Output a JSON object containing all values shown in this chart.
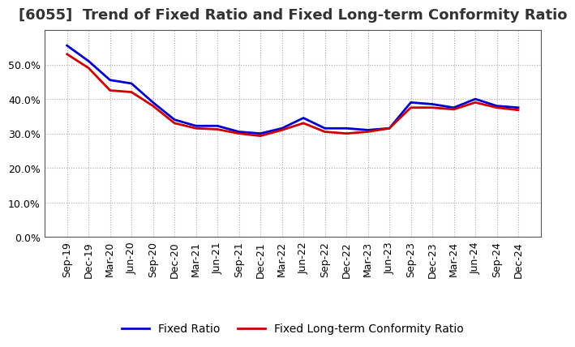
{
  "title": "[6055]  Trend of Fixed Ratio and Fixed Long-term Conformity Ratio",
  "x_labels": [
    "Sep-19",
    "Dec-19",
    "Mar-20",
    "Jun-20",
    "Sep-20",
    "Dec-20",
    "Mar-21",
    "Jun-21",
    "Sep-21",
    "Dec-21",
    "Mar-22",
    "Jun-22",
    "Sep-22",
    "Dec-22",
    "Mar-23",
    "Jun-23",
    "Sep-23",
    "Dec-23",
    "Mar-24",
    "Jun-24",
    "Sep-24",
    "Dec-24"
  ],
  "fixed_ratio": [
    0.555,
    0.51,
    0.455,
    0.445,
    0.39,
    0.34,
    0.322,
    0.322,
    0.305,
    0.3,
    0.315,
    0.345,
    0.315,
    0.315,
    0.31,
    0.315,
    0.39,
    0.385,
    0.375,
    0.4,
    0.38,
    0.375
  ],
  "fixed_lt_ratio": [
    0.53,
    0.49,
    0.425,
    0.42,
    0.38,
    0.33,
    0.315,
    0.312,
    0.3,
    0.293,
    0.31,
    0.33,
    0.305,
    0.3,
    0.305,
    0.315,
    0.375,
    0.375,
    0.37,
    0.39,
    0.375,
    0.368
  ],
  "fixed_ratio_color": "#0000cc",
  "fixed_lt_ratio_color": "#cc0000",
  "ylim": [
    0.0,
    0.6
  ],
  "yticks": [
    0.0,
    0.1,
    0.2,
    0.3,
    0.4,
    0.5
  ],
  "background_color": "#ffffff",
  "plot_area_color": "#ffffff",
  "grid_color": "#aaaaaa",
  "line_width": 2.0,
  "title_fontsize": 13,
  "tick_fontsize": 9,
  "legend_fontsize": 10
}
